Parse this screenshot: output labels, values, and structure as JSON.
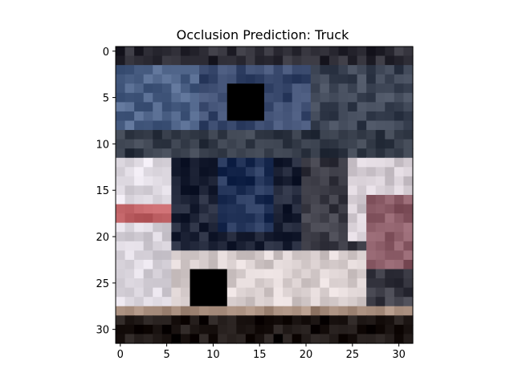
{
  "chart_data": {
    "type": "heatmap",
    "title": "Occlusion Prediction: Truck",
    "xlabel": "",
    "ylabel": "",
    "xlim": [
      -0.5,
      31.5
    ],
    "ylim": [
      31.5,
      -0.5
    ],
    "xticks": [
      0,
      5,
      10,
      15,
      20,
      25,
      30
    ],
    "yticks": [
      0,
      5,
      10,
      15,
      20,
      25,
      30
    ],
    "grid": false,
    "legend": "none",
    "image_size": [
      32,
      32
    ],
    "occlusion_patches": [
      {
        "x_start": 11.5,
        "x_end": 15.5,
        "y_start": 3.5,
        "y_end": 7.5,
        "color": "#000000"
      },
      {
        "x_start": 7.5,
        "x_end": 11.5,
        "y_start": 23.5,
        "y_end": 27.5,
        "color": "#000000"
      }
    ],
    "image_regions": [
      {
        "desc": "top-row",
        "x": [
          0,
          32
        ],
        "y": [
          0,
          2
        ],
        "color": "#2b2a33"
      },
      {
        "desc": "blue-left",
        "x": [
          0,
          9
        ],
        "y": [
          2,
          9
        ],
        "color": "#4d6287"
      },
      {
        "desc": "blue-center",
        "x": [
          9,
          21
        ],
        "y": [
          2,
          9
        ],
        "color": "#3a4a6e"
      },
      {
        "desc": "dark-right",
        "x": [
          21,
          32
        ],
        "y": [
          2,
          9
        ],
        "color": "#3c4454"
      },
      {
        "desc": "mid-band",
        "x": [
          0,
          32
        ],
        "y": [
          9,
          12
        ],
        "color": "#343b48"
      },
      {
        "desc": "left-pale",
        "x": [
          0,
          6
        ],
        "y": [
          12,
          17
        ],
        "color": "#ddd8e0"
      },
      {
        "desc": "red-band",
        "x": [
          0,
          8
        ],
        "y": [
          17,
          19
        ],
        "color": "#b85a5e"
      },
      {
        "desc": "left-pale-low",
        "x": [
          0,
          6
        ],
        "y": [
          19,
          28
        ],
        "color": "#d9d4dc"
      },
      {
        "desc": "center-dark",
        "x": [
          6,
          20
        ],
        "y": [
          12,
          22
        ],
        "color": "#1f2538"
      },
      {
        "desc": "center-blue",
        "x": [
          11,
          17
        ],
        "y": [
          12,
          20
        ],
        "color": "#203156"
      },
      {
        "desc": "right-pale",
        "x": [
          25,
          32
        ],
        "y": [
          12,
          21
        ],
        "color": "#d7cfd6"
      },
      {
        "desc": "right-mauve",
        "x": [
          27,
          32
        ],
        "y": [
          16,
          24
        ],
        "color": "#8a5b66"
      },
      {
        "desc": "lower-pale",
        "x": [
          6,
          27
        ],
        "y": [
          22,
          28
        ],
        "color": "#d9cfcf"
      },
      {
        "desc": "floor-tan",
        "x": [
          0,
          32
        ],
        "y": [
          28,
          29
        ],
        "color": "#a48a7a"
      },
      {
        "desc": "bottom-dark",
        "x": [
          0,
          32
        ],
        "y": [
          29,
          32
        ],
        "color": "#1b1412"
      }
    ]
  }
}
